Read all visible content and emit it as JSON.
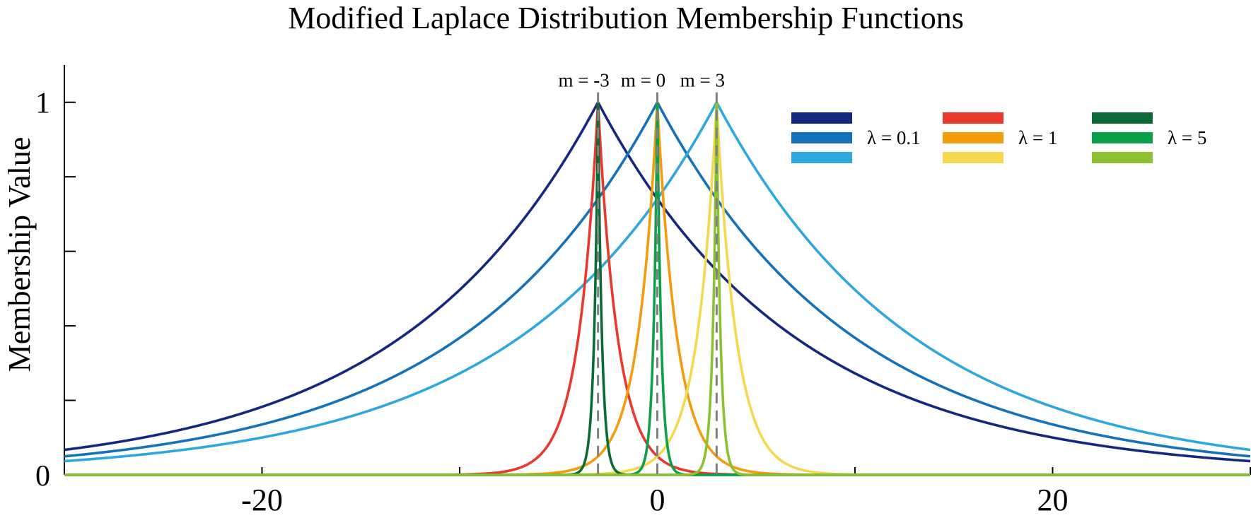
{
  "chart_data": {
    "type": "line",
    "title": "Modified Laplace Distribution Membership Functions",
    "xlabel": "",
    "ylabel": "Membership Value",
    "xlim": [
      -30,
      30
    ],
    "ylim": [
      0,
      1.1
    ],
    "x_ticks": [
      -30,
      -20,
      -10,
      0,
      10,
      20,
      30
    ],
    "x_tick_labels": [
      "",
      "-20",
      "",
      "0",
      "",
      "20",
      ""
    ],
    "y_ticks": [
      0,
      0.2,
      0.4,
      0.6,
      0.8,
      1
    ],
    "y_tick_labels": [
      "0",
      "",
      "",
      "",
      "",
      "1"
    ],
    "grid": false,
    "function": "exp(-lambda * |x - m|)",
    "centers": [
      {
        "m": -3,
        "label": "m = -3"
      },
      {
        "m": 0,
        "label": "m = 0"
      },
      {
        "m": 3,
        "label": "m = 3"
      }
    ],
    "legend": {
      "placement": "top-right",
      "groups": [
        {
          "label": "λ = 0.1",
          "lambda": 0.1,
          "colors": [
            "#14287f",
            "#1472ba",
            "#2ca8df"
          ]
        },
        {
          "label": "λ = 1",
          "lambda": 1,
          "colors": [
            "#e8392c",
            "#f39c0d",
            "#f4d94f"
          ]
        },
        {
          "label": "λ = 5",
          "lambda": 5,
          "colors": [
            "#0a6b36",
            "#0da04a",
            "#8cc231"
          ]
        }
      ]
    },
    "series": [
      {
        "lambda": 0.1,
        "m": -3,
        "color": "#14287f"
      },
      {
        "lambda": 0.1,
        "m": 0,
        "color": "#1472ba"
      },
      {
        "lambda": 0.1,
        "m": 3,
        "color": "#2ca8df"
      },
      {
        "lambda": 1,
        "m": -3,
        "color": "#e8392c"
      },
      {
        "lambda": 1,
        "m": 0,
        "color": "#f39c0d"
      },
      {
        "lambda": 1,
        "m": 3,
        "color": "#f4d94f"
      },
      {
        "lambda": 5,
        "m": -3,
        "color": "#0a6b36"
      },
      {
        "lambda": 5,
        "m": 0,
        "color": "#0da04a"
      },
      {
        "lambda": 5,
        "m": 3,
        "color": "#8cc231"
      }
    ]
  }
}
